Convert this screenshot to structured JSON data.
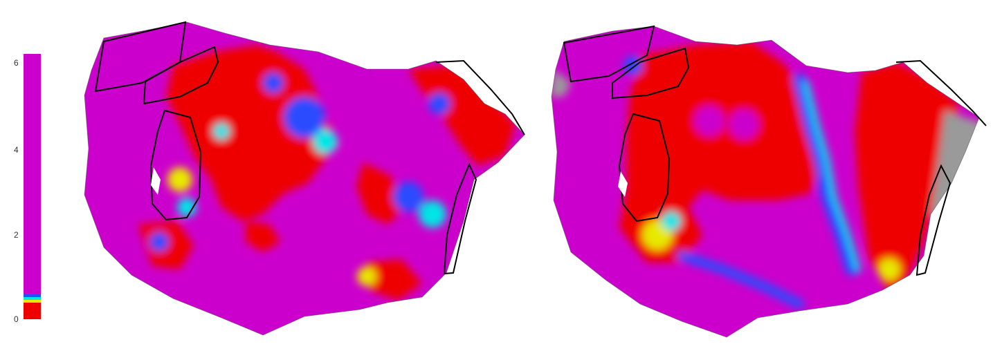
{
  "colorbar": {
    "tick_labels": [
      "6",
      "4",
      "2",
      "0"
    ],
    "range": [
      0,
      6.3
    ],
    "colors": {
      "high": "#cc00cc",
      "low": "#ee0000",
      "band_blue": "#2b4bff",
      "band_cyan": "#00e5e5",
      "band_yellow": "#e8e800"
    }
  },
  "maps": [
    {
      "name": "left-map",
      "dominant_colors": [
        "#cc00cc",
        "#ee0000"
      ]
    },
    {
      "name": "right-map",
      "dominant_colors": [
        "#cc00cc",
        "#ee0000",
        "#9a9a9a"
      ]
    }
  ]
}
